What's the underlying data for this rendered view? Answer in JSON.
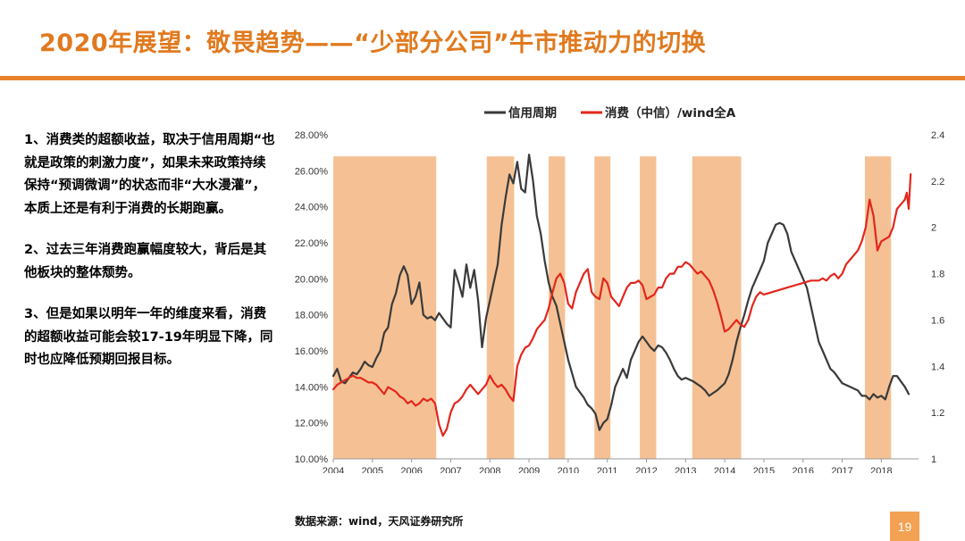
{
  "slide": {
    "title": "2020年展望：敬畏趋势——“少部分公司”牛市推动力的切换",
    "bullets": [
      "1、消费类的超额收益，取决于信用周期“也就是政策的刺激力度”，如果未来政策持续保持“预调微调”的状态而非“大水漫灌”，本质上还是有利于消费的长期跑赢。",
      "2、过去三年消费跑赢幅度较大，背后是其他板块的整体颓势。",
      "3、但是如果以明年一年的维度来看，消费的超额收益可能会较17-19年明显下降，同时也应降低预期回报目标。"
    ],
    "source": "数据来源：wind，天风证券研究所",
    "page_number": "19",
    "colors": {
      "title": "#e07a1f",
      "rule": "#e8822a",
      "shade": "#f5c194",
      "credit_line": "#3a3a3a",
      "consumer_line": "#e3261c",
      "page_box": "#f3a153"
    }
  },
  "chart_data": {
    "type": "line",
    "legend_placement": "top",
    "grid": false,
    "x_ticks": [
      "2004",
      "2005",
      "2006",
      "2007",
      "2008",
      "2009",
      "2010",
      "2011",
      "2012",
      "2013",
      "2014",
      "2015",
      "2016",
      "2017",
      "2018"
    ],
    "xlim": [
      2004.0,
      2018.95
    ],
    "y_left": {
      "ticks": [
        "10.00%",
        "12.00%",
        "14.00%",
        "16.00%",
        "18.00%",
        "20.00%",
        "22.00%",
        "24.00%",
        "26.00%",
        "28.00%"
      ],
      "lim": [
        10,
        28
      ]
    },
    "y_right": {
      "ticks": [
        "1",
        "1.2",
        "1.4",
        "1.6",
        "1.8",
        "2",
        "2.2",
        "2.4"
      ],
      "lim": [
        1,
        2.4
      ]
    },
    "shaded_periods": [
      [
        2003.8,
        2006.63
      ],
      [
        2007.92,
        2008.62
      ],
      [
        2009.5,
        2009.92
      ],
      [
        2010.67,
        2011.08
      ],
      [
        2011.83,
        2012.25
      ],
      [
        2013.17,
        2014.42
      ],
      [
        2017.58,
        2018.25
      ]
    ],
    "series": [
      {
        "name": "信用周期",
        "axis": "left",
        "color": "#3a3a3a",
        "x": [
          2004.0,
          2004.1,
          2004.2,
          2004.3,
          2004.4,
          2004.5,
          2004.6,
          2004.7,
          2004.8,
          2004.9,
          2005.0,
          2005.1,
          2005.2,
          2005.3,
          2005.4,
          2005.5,
          2005.6,
          2005.7,
          2005.8,
          2005.9,
          2006.0,
          2006.1,
          2006.2,
          2006.3,
          2006.4,
          2006.5,
          2006.6,
          2006.7,
          2006.8,
          2006.9,
          2007.0,
          2007.1,
          2007.2,
          2007.3,
          2007.4,
          2007.5,
          2007.6,
          2007.7,
          2007.8,
          2007.9,
          2008.0,
          2008.1,
          2008.2,
          2008.3,
          2008.4,
          2008.5,
          2008.6,
          2008.7,
          2008.8,
          2008.9,
          2009.0,
          2009.1,
          2009.2,
          2009.3,
          2009.4,
          2009.5,
          2009.6,
          2009.7,
          2009.8,
          2009.9,
          2010.0,
          2010.2,
          2010.4,
          2010.5,
          2010.6,
          2010.7,
          2010.8,
          2010.9,
          2011.0,
          2011.1,
          2011.2,
          2011.3,
          2011.4,
          2011.5,
          2011.6,
          2011.7,
          2011.8,
          2011.9,
          2012.0,
          2012.1,
          2012.2,
          2012.3,
          2012.4,
          2012.5,
          2012.6,
          2012.7,
          2012.8,
          2012.9,
          2013.0,
          2013.2,
          2013.4,
          2013.5,
          2013.6,
          2013.8,
          2014.0,
          2014.1,
          2014.2,
          2014.3,
          2014.4,
          2014.5,
          2014.6,
          2014.7,
          2014.8,
          2014.9,
          2015.0,
          2015.1,
          2015.2,
          2015.3,
          2015.4,
          2015.5,
          2015.6,
          2015.7,
          2015.8,
          2015.9,
          2016.0,
          2016.1,
          2016.2,
          2016.3,
          2016.4,
          2016.5,
          2016.6,
          2016.7,
          2016.8,
          2016.9,
          2017.0,
          2017.2,
          2017.4,
          2017.5,
          2017.6,
          2017.7,
          2017.8,
          2017.9,
          2018.0,
          2018.1,
          2018.2,
          2018.3,
          2018.4,
          2018.5,
          2018.6,
          2018.7
        ],
        "values": [
          14.6,
          15.0,
          14.3,
          14.2,
          14.5,
          14.8,
          14.7,
          15.0,
          15.4,
          15.2,
          15.1,
          15.6,
          16.0,
          17.0,
          17.3,
          18.6,
          19.2,
          20.2,
          20.7,
          20.2,
          18.6,
          19.0,
          19.8,
          18.0,
          17.8,
          17.9,
          17.7,
          18.1,
          17.8,
          17.5,
          17.3,
          20.5,
          19.8,
          19.0,
          20.8,
          19.5,
          20.5,
          18.8,
          16.2,
          17.8,
          18.8,
          19.8,
          20.8,
          23.0,
          24.5,
          25.8,
          25.3,
          26.5,
          25.0,
          24.8,
          26.9,
          25.5,
          23.5,
          22.5,
          21.0,
          19.8,
          19.0,
          18.5,
          17.5,
          16.5,
          15.5,
          14.0,
          13.4,
          13.0,
          12.8,
          12.5,
          11.6,
          12.0,
          12.2,
          13.0,
          14.0,
          14.5,
          15.0,
          14.5,
          15.5,
          16.0,
          16.5,
          16.8,
          16.5,
          16.2,
          16.0,
          16.3,
          16.2,
          15.9,
          15.5,
          15.0,
          14.6,
          14.4,
          14.5,
          14.3,
          14.0,
          13.8,
          13.5,
          13.8,
          14.2,
          14.7,
          15.5,
          16.5,
          17.3,
          18.0,
          18.8,
          19.5,
          20.0,
          20.5,
          21.0,
          22.0,
          22.5,
          23.0,
          23.1,
          23.0,
          22.5,
          21.5,
          21.0,
          20.5,
          20.0,
          19.5,
          18.5,
          17.5,
          16.5,
          16.0,
          15.5,
          15.0,
          14.8,
          14.5,
          14.2,
          14.0,
          13.8,
          13.5,
          13.5,
          13.3,
          13.6,
          13.4,
          13.5,
          13.3,
          14.0,
          14.6,
          14.6,
          14.3,
          14.0,
          13.6
        ]
      },
      {
        "name": "消费（中信）/wind全A",
        "axis": "right",
        "color": "#e3261c",
        "x": [
          2004.0,
          2004.1,
          2004.2,
          2004.3,
          2004.4,
          2004.5,
          2004.6,
          2004.7,
          2004.8,
          2004.9,
          2005.0,
          2005.1,
          2005.2,
          2005.3,
          2005.4,
          2005.5,
          2005.6,
          2005.7,
          2005.8,
          2005.9,
          2006.0,
          2006.1,
          2006.2,
          2006.3,
          2006.4,
          2006.5,
          2006.6,
          2006.7,
          2006.8,
          2006.9,
          2007.0,
          2007.1,
          2007.2,
          2007.3,
          2007.4,
          2007.5,
          2007.6,
          2007.7,
          2007.8,
          2007.9,
          2008.0,
          2008.1,
          2008.2,
          2008.3,
          2008.4,
          2008.5,
          2008.6,
          2008.7,
          2008.8,
          2008.9,
          2009.0,
          2009.1,
          2009.2,
          2009.3,
          2009.4,
          2009.5,
          2009.6,
          2009.7,
          2009.8,
          2009.9,
          2010.0,
          2010.1,
          2010.2,
          2010.3,
          2010.4,
          2010.5,
          2010.6,
          2010.7,
          2010.8,
          2010.9,
          2011.0,
          2011.1,
          2011.2,
          2011.3,
          2011.4,
          2011.5,
          2011.6,
          2011.7,
          2011.8,
          2011.9,
          2012.0,
          2012.1,
          2012.2,
          2012.3,
          2012.4,
          2012.5,
          2012.6,
          2012.7,
          2012.8,
          2012.9,
          2013.0,
          2013.1,
          2013.2,
          2013.3,
          2013.4,
          2013.5,
          2013.6,
          2013.7,
          2013.8,
          2013.9,
          2014.0,
          2014.1,
          2014.2,
          2014.3,
          2014.4,
          2014.5,
          2014.6,
          2014.7,
          2014.8,
          2014.9,
          2015.0,
          2015.2,
          2015.4,
          2015.6,
          2015.8,
          2016.0,
          2016.2,
          2016.4,
          2016.5,
          2016.6,
          2016.7,
          2016.8,
          2016.9,
          2017.0,
          2017.1,
          2017.2,
          2017.3,
          2017.4,
          2017.5,
          2017.6,
          2017.7,
          2017.8,
          2017.9,
          2018.0,
          2018.1,
          2018.2,
          2018.3,
          2018.4,
          2018.5,
          2018.6,
          2018.65,
          2018.7,
          2018.75
        ],
        "values": [
          1.3,
          1.32,
          1.33,
          1.34,
          1.35,
          1.36,
          1.35,
          1.35,
          1.34,
          1.33,
          1.33,
          1.32,
          1.3,
          1.28,
          1.31,
          1.3,
          1.29,
          1.27,
          1.26,
          1.24,
          1.25,
          1.23,
          1.24,
          1.26,
          1.25,
          1.26,
          1.24,
          1.15,
          1.1,
          1.13,
          1.2,
          1.24,
          1.25,
          1.27,
          1.3,
          1.32,
          1.3,
          1.28,
          1.3,
          1.32,
          1.36,
          1.33,
          1.31,
          1.32,
          1.3,
          1.27,
          1.25,
          1.4,
          1.45,
          1.48,
          1.49,
          1.52,
          1.56,
          1.58,
          1.6,
          1.65,
          1.72,
          1.78,
          1.8,
          1.76,
          1.67,
          1.65,
          1.72,
          1.76,
          1.8,
          1.82,
          1.72,
          1.7,
          1.69,
          1.78,
          1.76,
          1.7,
          1.68,
          1.66,
          1.7,
          1.74,
          1.76,
          1.76,
          1.77,
          1.75,
          1.69,
          1.7,
          1.71,
          1.74,
          1.74,
          1.78,
          1.8,
          1.8,
          1.83,
          1.83,
          1.85,
          1.84,
          1.82,
          1.8,
          1.81,
          1.79,
          1.77,
          1.73,
          1.68,
          1.62,
          1.55,
          1.56,
          1.58,
          1.6,
          1.58,
          1.57,
          1.6,
          1.66,
          1.7,
          1.72,
          1.71,
          1.72,
          1.73,
          1.74,
          1.75,
          1.76,
          1.77,
          1.77,
          1.78,
          1.77,
          1.79,
          1.8,
          1.78,
          1.8,
          1.84,
          1.86,
          1.88,
          1.9,
          1.94,
          2.0,
          2.12,
          2.05,
          1.9,
          1.94,
          1.95,
          1.96,
          2.0,
          2.08,
          2.1,
          2.12,
          2.15,
          2.08,
          2.23
        ]
      }
    ]
  }
}
